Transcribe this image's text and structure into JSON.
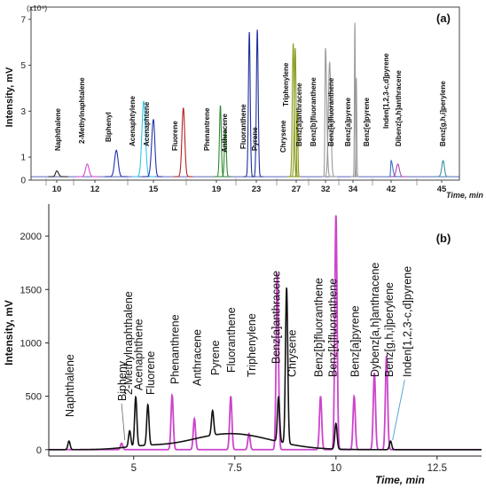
{
  "chart_data": [
    {
      "panel": "(a)",
      "type": "line",
      "scale_note": "(x10⁴)",
      "ylabel": "Intensity, mV",
      "xlabel": "Time, min",
      "y_ticks": [
        "0",
        "1",
        "3",
        "5",
        "7"
      ],
      "x_ticks": [
        "10",
        "12",
        "15",
        "19",
        "23",
        "27",
        "32",
        "34",
        "42",
        "45"
      ],
      "peaks": [
        {
          "label": "Naphthalene",
          "time": 10.0,
          "height": 0.25,
          "color": "#222222"
        },
        {
          "label": "2-Methylnaphtalene",
          "time": 11.6,
          "height": 0.55,
          "color": "#d24ad2"
        },
        {
          "label": "Biphenyl",
          "time": 13.1,
          "height": 1.15,
          "color": "#2233aa"
        },
        {
          "label": "Acenaphtylene",
          "time": 14.5,
          "height": 3.3,
          "color": "#33c6e8"
        },
        {
          "label": "Acenaphtene",
          "time": 15.0,
          "height": 2.5,
          "color": "#2233aa"
        },
        {
          "label": "Fluorene",
          "time": 16.9,
          "height": 3.0,
          "color": "#b22222"
        },
        {
          "label": "Phenantrene",
          "time": 19.4,
          "height": 3.1,
          "color": "#2e8b2e"
        },
        {
          "label": "Anthracene",
          "time": 19.9,
          "height": 2.1,
          "color": "#2e8b2e"
        },
        {
          "label": "Fluoranthene",
          "time": 22.3,
          "height": 6.3,
          "color": "#1f2f9e"
        },
        {
          "label": "Pyrene",
          "time": 23.1,
          "height": 6.4,
          "color": "#1f2f9e"
        },
        {
          "label": "Chrysene",
          "time": 26.7,
          "height": 5.8,
          "color": "#8a9a1a"
        },
        {
          "label": "Triphenylene",
          "time": 26.9,
          "height": 5.6,
          "color": "#8a9a1a"
        },
        {
          "label": "Benz[a]anthracene",
          "time": 27.2,
          "height": 2.8,
          "color": "#8a9a1a"
        },
        {
          "label": "Benz[b]fluoranthene",
          "time": 32.0,
          "height": 5.6,
          "color": "#999999"
        },
        {
          "label": "Benz[k]fluoranthene",
          "time": 32.3,
          "height": 5.0,
          "color": "#999999"
        },
        {
          "label": "Benz[a]pyrene",
          "time": 34.4,
          "height": 6.7,
          "color": "#999999"
        },
        {
          "label": "Benz[e]pyrene",
          "time": 34.7,
          "height": 4.3,
          "color": "#999999"
        },
        {
          "label": "Inden[1,2,3-c,d]pyrene",
          "time": 42.0,
          "height": 0.7,
          "color": "#3e6fc0"
        },
        {
          "label": "Dibenz[a,h]anthracene",
          "time": 42.4,
          "height": 0.55,
          "color": "#b04ab0"
        },
        {
          "label": "Benz[g,h,i]perylene",
          "time": 45.1,
          "height": 0.7,
          "color": "#3b8fa3"
        }
      ]
    },
    {
      "panel": "(b)",
      "type": "line",
      "ylabel": "Intensity, mV",
      "xlabel": "Time, min",
      "xlim": [
        2.9,
        13.6
      ],
      "ylim": [
        -60,
        2300
      ],
      "y_ticks": [
        0,
        500,
        1000,
        1500,
        2000
      ],
      "x_ticks": [
        "5",
        "7.5",
        "10",
        "12.5"
      ],
      "series": [
        {
          "color": "#111111",
          "peaks": [
            {
              "label": "Naphthalene",
              "time": 3.4,
              "height": 80
            },
            {
              "label": "2-Methylnaphthalene",
              "time": 4.9,
              "height": 150
            },
            {
              "label": "Acenaphthene",
              "time": 5.05,
              "height": 460
            },
            {
              "label": "Fluorene",
              "time": 5.35,
              "height": 380
            },
            {
              "label": "Pyrene",
              "time": 6.95,
              "height": 230
            },
            {
              "label": "Chrysene",
              "time": 8.58,
              "height": 420
            },
            {
              "label": "Chrysene",
              "time": 8.78,
              "height": 1460
            },
            {
              "label": "Benz[k]fluoranthene",
              "time": 10.0,
              "height": 240
            },
            {
              "label": "Inden[1,2,3-c,d]pyrene",
              "time": 11.35,
              "height": 80
            }
          ]
        },
        {
          "color": "#cc44cc",
          "peaks": [
            {
              "label": "Bipheny",
              "time": 4.7,
              "height": 60
            },
            {
              "label": "Phenanthrene",
              "time": 5.95,
              "height": 510
            },
            {
              "label": "Anthracene",
              "time": 6.5,
              "height": 290
            },
            {
              "label": "Fluoranthene",
              "time": 7.4,
              "height": 500
            },
            {
              "label": "Triphenylene",
              "time": 7.85,
              "height": 150
            },
            {
              "label": "Benz[a]anthracene",
              "time": 8.55,
              "height": 1660
            },
            {
              "label": "Benz[b]fluoranthene",
              "time": 9.62,
              "height": 500
            },
            {
              "label": "Benz[k]fluoranthene",
              "time": 10.0,
              "height": 2200
            },
            {
              "label": "Benz[a]pyrene",
              "time": 10.45,
              "height": 500
            },
            {
              "label": "Dybenz[a,h]anthracene",
              "time": 10.95,
              "height": 720
            },
            {
              "label": "Benz[g,h,i]perylene",
              "time": 11.25,
              "height": 880
            }
          ]
        }
      ],
      "peak_labels": [
        {
          "label": "Naphthalene",
          "time": 3.4
        },
        {
          "label": "Bipheny",
          "time": 4.7
        },
        {
          "label": "2-Methylnaphthalene",
          "time": 4.85
        },
        {
          "label": "Acenaphthene",
          "time": 5.1
        },
        {
          "label": "Fluorene",
          "time": 5.4
        },
        {
          "label": "Phenanthrene",
          "time": 6.0
        },
        {
          "label": "Anthracene",
          "time": 6.55
        },
        {
          "label": "Pyrene",
          "time": 7.0
        },
        {
          "label": "Fluoranthene",
          "time": 7.4
        },
        {
          "label": "Triphenylene",
          "time": 7.9
        },
        {
          "label": "Benz[a]anthracene",
          "time": 8.5
        },
        {
          "label": "Chrysene",
          "time": 8.9
        },
        {
          "label": "Benz[b]fluoranthene",
          "time": 9.55
        },
        {
          "label": "Benz[k]fluoranthene",
          "time": 9.9
        },
        {
          "label": "Benz[a]pyrene",
          "time": 10.45
        },
        {
          "label": "Dybenz[a,h]anthracene",
          "time": 10.95
        },
        {
          "label": "Benz[g,h,i]perylene",
          "time": 11.3
        },
        {
          "label": "Inden[1,2,3-c,d]pyrene",
          "time": 11.75
        }
      ]
    }
  ]
}
